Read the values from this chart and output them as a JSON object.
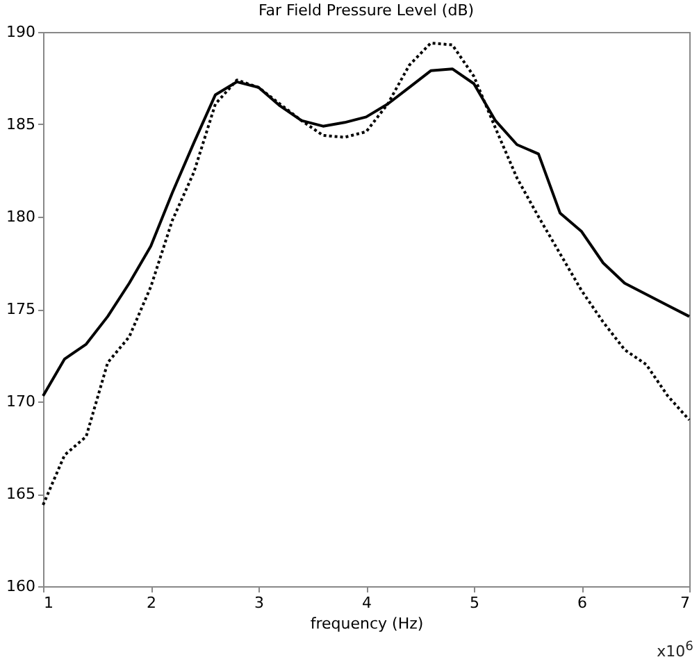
{
  "chart_data": {
    "type": "line",
    "title": "Far Field Pressure Level (dB)",
    "xlabel": "frequency (Hz)",
    "annotations": [
      "x10$^{6}$"
    ],
    "x": [
      1.0,
      1.2,
      1.4,
      1.6,
      1.8,
      2.0,
      2.2,
      2.4,
      2.6,
      2.8,
      3.0,
      3.2,
      3.4,
      3.6,
      3.8,
      4.0,
      4.2,
      4.4,
      4.6,
      4.8,
      5.0,
      5.2,
      5.4,
      5.6,
      5.8,
      6.0,
      6.2,
      6.4,
      6.6,
      6.8,
      7.0
    ],
    "series": [
      {
        "color": "#000000",
        "line_style": "solid",
        "values": [
          170.3,
          172.3,
          173.1,
          174.6,
          176.4,
          178.4,
          181.3,
          184.0,
          186.6,
          187.3,
          187.0,
          186.0,
          185.2,
          184.9,
          185.1,
          185.4,
          186.1,
          187.0,
          187.9,
          188.0,
          187.2,
          185.2,
          183.9,
          183.4,
          180.2,
          179.2,
          177.5,
          176.4,
          175.8,
          175.2,
          174.6
        ]
      },
      {
        "color": "#000000",
        "line_style": "dotted",
        "values": [
          164.4,
          167.1,
          168.1,
          172.1,
          173.5,
          176.2,
          179.8,
          182.4,
          186.1,
          187.4,
          187.0,
          186.1,
          185.2,
          184.4,
          184.3,
          184.6,
          186.1,
          188.2,
          189.4,
          189.3,
          187.6,
          184.8,
          182.1,
          180.0,
          178.0,
          176.0,
          174.3,
          172.8,
          172.0,
          170.3,
          169.0
        ]
      }
    ],
    "xlim": [
      1,
      7
    ],
    "xticks": [
      1,
      2,
      3,
      4,
      5,
      6,
      7
    ],
    "ylim": [
      160,
      190
    ],
    "yticks": [
      160,
      165,
      170,
      175,
      180,
      185,
      190
    ],
    "grid": false
  }
}
